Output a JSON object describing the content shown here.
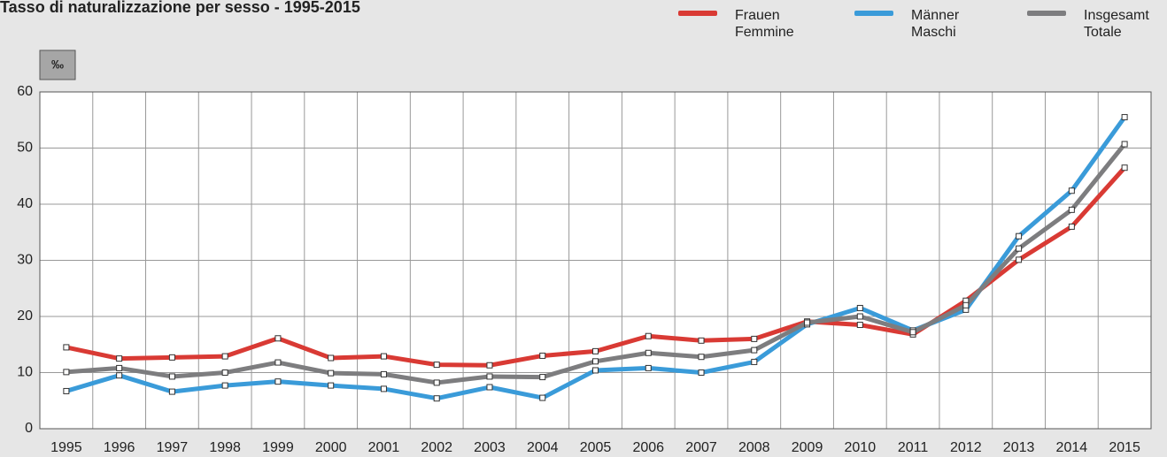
{
  "chart_data": {
    "type": "line",
    "title": "Tasso di naturalizzazione per sesso - 1995-2015",
    "y_label": "‰",
    "categories": [
      "1995",
      "1996",
      "1997",
      "1998",
      "1999",
      "2000",
      "2001",
      "2002",
      "2003",
      "2004",
      "2005",
      "2006",
      "2007",
      "2008",
      "2009",
      "2010",
      "2011",
      "2012",
      "2013",
      "2014",
      "2015"
    ],
    "series": [
      {
        "name": "Frauen\nFemmine",
        "color": "#d93a34",
        "values": [
          14.5,
          12.5,
          12.7,
          12.9,
          16.1,
          12.6,
          12.9,
          11.4,
          11.3,
          13.0,
          13.8,
          16.5,
          15.7,
          16.0,
          19.1,
          18.5,
          16.8,
          22.8,
          30.1,
          36.0,
          46.5
        ]
      },
      {
        "name": "Männer\nMaschi",
        "color": "#3a9bd9",
        "values": [
          6.7,
          9.5,
          6.6,
          7.7,
          8.4,
          7.7,
          7.1,
          5.4,
          7.4,
          5.5,
          10.4,
          10.8,
          10.0,
          11.9,
          18.6,
          21.5,
          17.5,
          21.2,
          34.3,
          42.4,
          55.5
        ]
      },
      {
        "name": "Insgesamt\nTotale",
        "color": "#7d7d7f",
        "values": [
          10.1,
          10.8,
          9.3,
          10.0,
          11.8,
          9.9,
          9.7,
          8.2,
          9.3,
          9.2,
          12.0,
          13.5,
          12.8,
          14.0,
          18.9,
          20.0,
          17.2,
          22.0,
          32.1,
          39.0,
          50.7
        ]
      }
    ],
    "ylim": [
      0,
      60
    ],
    "yticks": [
      0,
      10,
      20,
      30,
      40,
      50,
      60
    ],
    "grid": true
  }
}
